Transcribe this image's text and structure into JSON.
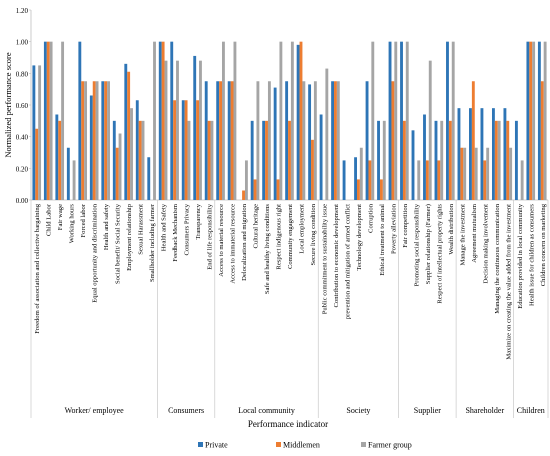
{
  "chart_data": {
    "type": "bar",
    "ylabel": "Normalized performance score",
    "xlabel": "Performance indicator",
    "ylim": [
      0,
      1.2
    ],
    "yticks": [
      "0.00",
      "0.20",
      "0.40",
      "0.60",
      "0.80",
      "1.00",
      "1.20"
    ],
    "grid": false,
    "legend_position": "bottom",
    "categories": [
      "Freedom of association and collective bargaining",
      "Child Labor",
      "Fair wage",
      "Working hours",
      "Forced labor",
      "Equal opportunity and discrimination",
      "Health and safety",
      "Social benefit/ Social Security",
      "Employment relationship",
      "Sexual Harassment",
      "Smallholder including farmer",
      "Health and Safety",
      "Feedback Mechanism",
      "Consumers Privacy",
      "Transparency",
      "End of life responsibility",
      "Access to material resource",
      "Access to immaterial resource",
      "Delocalization and migration",
      "Cultural heritage",
      "Safe and healthy living conditions",
      "Respect indigenous right",
      "Community engagement",
      "Local employment",
      "Secure living condition",
      "Public commitment to sustainability issue",
      "Contribution to economic development",
      "prevention and mitigation of armed conflict",
      "Technology development",
      "Corruption",
      "Ethical treatment to animal",
      "Poverty alleviation",
      "Fair competition",
      "Promoting social responsibility",
      "Supplier relationship (Farmer)",
      "Respect of intellectual property rights",
      "Wealth distribution",
      "Manage the investment",
      "Agreement mutualism",
      "Decision making involvement",
      "Managing the continuous communication",
      "Maximize on creating the value added from the investment",
      "Education provided in local community",
      "Health issue for children as consumers",
      "Children concern on marketing"
    ],
    "series": [
      {
        "name": "Private",
        "color": "#2e75b6",
        "values": [
          0.85,
          1.0,
          0.54,
          0.33,
          1.0,
          0.66,
          0.75,
          0.5,
          0.86,
          0.63,
          0.27,
          1.0,
          1.0,
          0.63,
          0.91,
          0.75,
          0.75,
          0.75,
          0,
          0.5,
          0.5,
          0.71,
          0.75,
          0.98,
          0.73,
          0.54,
          0.75,
          0.25,
          0.27,
          0.75,
          0.5,
          1.0,
          1.0,
          0.44,
          0.54,
          0.5,
          1.0,
          0.58,
          0.58,
          0.58,
          0.58,
          0.58,
          0.5,
          1.0,
          1.0
        ]
      },
      {
        "name": "Middlemen",
        "color": "#ed7d31",
        "values": [
          0.45,
          1.0,
          0.5,
          0,
          0.75,
          0.75,
          0.75,
          0.33,
          0.81,
          0.5,
          0,
          1.0,
          0.63,
          0.63,
          0.63,
          0.5,
          0.75,
          0.75,
          0.06,
          0.13,
          0.5,
          0.13,
          0.5,
          1.0,
          0.38,
          0,
          0.75,
          0,
          0.13,
          0.25,
          0.13,
          0.75,
          0.5,
          0,
          0.25,
          0.25,
          0.5,
          0.33,
          0.75,
          0.25,
          0.5,
          0.5,
          0,
          1.0,
          0.75
        ]
      },
      {
        "name": "Farmer group",
        "color": "#a5a5a5",
        "values": [
          0.85,
          1.0,
          1.0,
          0.25,
          0.75,
          0.75,
          0.75,
          0.42,
          0.58,
          0.5,
          1.0,
          0.88,
          0.88,
          0.5,
          0.88,
          0.5,
          1.0,
          1.0,
          0.25,
          0.75,
          0.75,
          1.0,
          1.0,
          0.75,
          0.75,
          0.83,
          0.75,
          0,
          0.33,
          1.0,
          0.5,
          1.0,
          1.0,
          0.25,
          0.88,
          0.5,
          1.0,
          0.33,
          0.33,
          0.33,
          0.5,
          0.33,
          0.25,
          1.0,
          1.0
        ]
      }
    ],
    "groups": [
      {
        "label": "Worker/ employee",
        "start": 0,
        "end": 10
      },
      {
        "label": "Consumers",
        "start": 11,
        "end": 15
      },
      {
        "label": "Local community",
        "start": 16,
        "end": 24
      },
      {
        "label": "Society",
        "start": 25,
        "end": 31
      },
      {
        "label": "Supplier",
        "start": 32,
        "end": 36
      },
      {
        "label": "Shareholder",
        "start": 37,
        "end": 41
      },
      {
        "label": "Children",
        "start": 42,
        "end": 44
      }
    ]
  }
}
